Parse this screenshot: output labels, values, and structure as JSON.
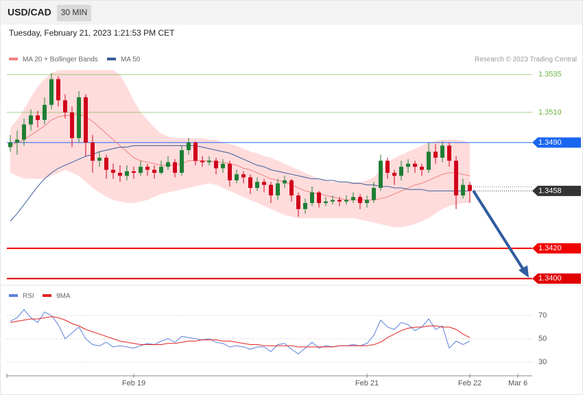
{
  "chart_data": [
    {
      "type": "candlestick",
      "symbol": "USD/CAD",
      "interval": "30 MIN",
      "timestamp": "Tuesday, February 21, 2023 1:21:53 PM CET",
      "credit": "Research © 2023 Trading Central",
      "up_color": "#1e7f34",
      "down_color": "#d0021b",
      "band_color": "#ffdcdc",
      "ylim": [
        1.3396,
        1.3539
      ],
      "ohlc": [
        [
          1.3487,
          1.3495,
          1.3484,
          1.349
        ],
        [
          1.349,
          1.3498,
          1.3482,
          1.3492
        ],
        [
          1.3492,
          1.3506,
          1.3488,
          1.3502
        ],
        [
          1.3502,
          1.3512,
          1.3498,
          1.3508
        ],
        [
          1.3508,
          1.3511,
          1.35,
          1.3505
        ],
        [
          1.3505,
          1.352,
          1.3502,
          1.3515
        ],
        [
          1.3515,
          1.3536,
          1.3512,
          1.3532
        ],
        [
          1.3532,
          1.3534,
          1.3514,
          1.3518
        ],
        [
          1.3518,
          1.3522,
          1.3506,
          1.351
        ],
        [
          1.351,
          1.3514,
          1.3487,
          1.3493
        ],
        [
          1.3493,
          1.3524,
          1.349,
          1.352
        ],
        [
          1.352,
          1.3522,
          1.3481,
          1.349
        ],
        [
          1.349,
          1.3495,
          1.347,
          1.3478
        ],
        [
          1.3478,
          1.3484,
          1.3474,
          1.348
        ],
        [
          1.348,
          1.3482,
          1.3466,
          1.3472
        ],
        [
          1.3472,
          1.3476,
          1.3466,
          1.347
        ],
        [
          1.347,
          1.3475,
          1.3464,
          1.3468
        ],
        [
          1.3468,
          1.3475,
          1.3465,
          1.3471
        ],
        [
          1.3471,
          1.3474,
          1.3466,
          1.347
        ],
        [
          1.347,
          1.3478,
          1.3468,
          1.3474
        ],
        [
          1.3474,
          1.3476,
          1.3468,
          1.3472
        ],
        [
          1.3472,
          1.3475,
          1.3466,
          1.347
        ],
        [
          1.347,
          1.3478,
          1.3469,
          1.3474
        ],
        [
          1.3474,
          1.3481,
          1.3472,
          1.3477
        ],
        [
          1.3477,
          1.3479,
          1.3467,
          1.347
        ],
        [
          1.347,
          1.3488,
          1.3468,
          1.3485
        ],
        [
          1.3485,
          1.3493,
          1.3482,
          1.349
        ],
        [
          1.349,
          1.3491,
          1.3475,
          1.3478
        ],
        [
          1.3478,
          1.3481,
          1.3474,
          1.3477
        ],
        [
          1.3477,
          1.3481,
          1.3475,
          1.3478
        ],
        [
          1.3478,
          1.348,
          1.3469,
          1.3473
        ],
        [
          1.3473,
          1.3479,
          1.347,
          1.3476
        ],
        [
          1.3476,
          1.3478,
          1.3461,
          1.3465
        ],
        [
          1.3465,
          1.3472,
          1.3463,
          1.3469
        ],
        [
          1.3469,
          1.3471,
          1.3463,
          1.3467
        ],
        [
          1.3467,
          1.3469,
          1.3456,
          1.346
        ],
        [
          1.346,
          1.3467,
          1.3458,
          1.3464
        ],
        [
          1.3464,
          1.3466,
          1.3457,
          1.3462
        ],
        [
          1.3462,
          1.3464,
          1.345,
          1.3455
        ],
        [
          1.3455,
          1.3466,
          1.3452,
          1.3463
        ],
        [
          1.3463,
          1.3468,
          1.346,
          1.3465
        ],
        [
          1.3465,
          1.3466,
          1.3451,
          1.3455
        ],
        [
          1.3455,
          1.3457,
          1.3441,
          1.3446
        ],
        [
          1.3446,
          1.3453,
          1.3443,
          1.345
        ],
        [
          1.345,
          1.3461,
          1.3448,
          1.3457
        ],
        [
          1.3457,
          1.3458,
          1.3447,
          1.345
        ],
        [
          1.345,
          1.3454,
          1.3448,
          1.3451
        ],
        [
          1.3451,
          1.3455,
          1.3449,
          1.3452
        ],
        [
          1.3452,
          1.3454,
          1.3448,
          1.3451
        ],
        [
          1.3451,
          1.3455,
          1.3449,
          1.3452
        ],
        [
          1.3452,
          1.3457,
          1.345,
          1.3454
        ],
        [
          1.3454,
          1.3456,
          1.3446,
          1.345
        ],
        [
          1.345,
          1.3455,
          1.3447,
          1.3452
        ],
        [
          1.3452,
          1.3464,
          1.345,
          1.346
        ],
        [
          1.346,
          1.3482,
          1.3458,
          1.3478
        ],
        [
          1.3478,
          1.348,
          1.3466,
          1.347
        ],
        [
          1.347,
          1.3472,
          1.3462,
          1.3468
        ],
        [
          1.3468,
          1.3478,
          1.3465,
          1.3474
        ],
        [
          1.3474,
          1.3479,
          1.347,
          1.3476
        ],
        [
          1.3476,
          1.3478,
          1.347,
          1.3474
        ],
        [
          1.3474,
          1.3476,
          1.3468,
          1.3472
        ],
        [
          1.3472,
          1.349,
          1.347,
          1.3484
        ],
        [
          1.3484,
          1.3489,
          1.3476,
          1.348
        ],
        [
          1.348,
          1.3491,
          1.3477,
          1.3488
        ],
        [
          1.3488,
          1.349,
          1.3474,
          1.3478
        ],
        [
          1.3478,
          1.3481,
          1.3446,
          1.3455
        ],
        [
          1.3455,
          1.3466,
          1.3453,
          1.3462
        ],
        [
          1.3462,
          1.3464,
          1.345,
          1.3458
        ],
        null,
        null,
        null,
        null,
        null,
        null,
        null
      ],
      "series": [
        {
          "name": "MA 20 + Bollinger Bands",
          "color": "#f08080",
          "values": [
            1.3488,
            1.349,
            1.3492,
            1.3495,
            1.3498,
            1.3501,
            1.3505,
            1.3507,
            1.3508,
            1.3508,
            1.3509,
            1.3507,
            1.3504,
            1.35,
            1.3496,
            1.3492,
            1.3488,
            1.3484,
            1.348,
            1.3478,
            1.3477,
            1.3476,
            1.3475,
            1.3475,
            1.3475,
            1.3476,
            1.3478,
            1.3478,
            1.3478,
            1.3478,
            1.3477,
            1.3477,
            1.3476,
            1.3475,
            1.3473,
            1.3472,
            1.347,
            1.3468,
            1.3466,
            1.3465,
            1.3464,
            1.3462,
            1.346,
            1.3458,
            1.3457,
            1.3456,
            1.3455,
            1.3454,
            1.3453,
            1.3452,
            1.3452,
            1.3452,
            1.3452,
            1.3452,
            1.3453,
            1.3454,
            1.3456,
            1.3458,
            1.346,
            1.3462,
            1.3463,
            1.3465,
            1.3467,
            1.3469,
            1.347,
            1.347,
            1.3469,
            1.3468,
            null,
            null,
            null,
            null,
            null,
            null,
            null
          ],
          "upper": [
            1.35,
            1.3505,
            1.3512,
            1.352,
            1.3527,
            1.3532,
            1.3536,
            1.3538,
            1.3538,
            1.3538,
            1.3538,
            1.3538,
            1.3538,
            1.3538,
            1.3538,
            1.3538,
            1.3535,
            1.3527,
            1.3518,
            1.351,
            1.3505,
            1.35,
            1.3496,
            1.3494,
            1.3493,
            1.3493,
            1.3493,
            1.3493,
            1.3493,
            1.3492,
            1.3492,
            1.349,
            1.3489,
            1.3488,
            1.3486,
            1.3484,
            1.3483,
            1.3481,
            1.348,
            1.3478,
            1.3476,
            1.3474,
            1.3472,
            1.347,
            1.3468,
            1.3466,
            1.3465,
            1.3464,
            1.3464,
            1.3464,
            1.3464,
            1.3464,
            1.3465,
            1.3467,
            1.3472,
            1.3476,
            1.348,
            1.3482,
            1.3484,
            1.3486,
            1.3488,
            1.349,
            1.3491,
            1.3492,
            1.3492,
            1.3492,
            1.3491,
            1.349,
            null,
            null,
            null,
            null,
            null,
            null,
            null
          ],
          "lower": [
            1.347,
            1.3468,
            1.3466,
            1.3466,
            1.3466,
            1.3466,
            1.3468,
            1.347,
            1.3472,
            1.347,
            1.3468,
            1.3464,
            1.346,
            1.3457,
            1.3454,
            1.3452,
            1.3451,
            1.345,
            1.345,
            1.3451,
            1.3452,
            1.3454,
            1.3456,
            1.3457,
            1.3458,
            1.3459,
            1.346,
            1.3461,
            1.3462,
            1.3463,
            1.3462,
            1.346,
            1.3458,
            1.3456,
            1.3454,
            1.3452,
            1.345,
            1.3448,
            1.3446,
            1.3444,
            1.3442,
            1.3441,
            1.344,
            1.344,
            1.344,
            1.344,
            1.344,
            1.344,
            1.344,
            1.344,
            1.344,
            1.3439,
            1.3438,
            1.3437,
            1.3436,
            1.3435,
            1.3434,
            1.3434,
            1.3435,
            1.3436,
            1.3438,
            1.344,
            1.3443,
            1.3446,
            1.3448,
            1.3449,
            1.345,
            1.345,
            null,
            null,
            null,
            null,
            null,
            null,
            null
          ]
        },
        {
          "name": "MA 50",
          "color": "#3b5b9a",
          "values": [
            1.3438,
            1.3443,
            1.3449,
            1.3455,
            1.3461,
            1.3466,
            1.347,
            1.3473,
            1.3475,
            1.3477,
            1.3479,
            1.3481,
            1.3482,
            1.3484,
            1.3485,
            1.3486,
            1.3487,
            1.3487,
            1.3488,
            1.3488,
            1.3488,
            1.3488,
            1.3488,
            1.3488,
            1.3488,
            1.3488,
            1.3488,
            1.3488,
            1.3487,
            1.3486,
            1.3485,
            1.3484,
            1.3483,
            1.3481,
            1.3479,
            1.3477,
            1.3475,
            1.3474,
            1.3472,
            1.3471,
            1.347,
            1.3469,
            1.3468,
            1.3467,
            1.3466,
            1.3466,
            1.3465,
            1.3465,
            1.3464,
            1.3464,
            1.3463,
            1.3463,
            1.3462,
            1.3462,
            1.3461,
            1.3461,
            1.346,
            1.346,
            1.3459,
            1.3459,
            1.3459,
            1.3458,
            1.3458,
            1.3458,
            1.3458,
            1.3458,
            1.3458,
            1.3458,
            null,
            null,
            null,
            null,
            null,
            null,
            null
          ]
        }
      ],
      "levels": [
        {
          "value": 1.3535,
          "color": "#6cb33f",
          "badge": false,
          "line": "solid"
        },
        {
          "value": 1.351,
          "label": "1.3510",
          "color": "#6cb33f",
          "badge": false,
          "line": "solid"
        },
        {
          "value": 1.349,
          "label": "1.3490",
          "color": "#1a66f0",
          "badge": true,
          "line": "solid"
        },
        {
          "value": 1.3458,
          "color": "#333333",
          "badge": true,
          "line": "dotted"
        },
        {
          "value": 1.342,
          "label": "1.3420",
          "color": "#f00000",
          "badge": true,
          "line": "solid"
        },
        {
          "value": 1.34,
          "label": "1.3400",
          "color": "#e00000",
          "badge": true,
          "line": "solid"
        }
      ]
    },
    {
      "type": "line",
      "ylim": [
        20,
        93.5
      ],
      "yticks": [
        30,
        50,
        70
      ],
      "categories": [
        null,
        null,
        null,
        null,
        null,
        null,
        null,
        null,
        null,
        null,
        null,
        null,
        null,
        null,
        null,
        null,
        null,
        null,
        "Feb 19",
        null,
        null,
        null,
        null,
        null,
        null,
        null,
        null,
        null,
        null,
        null,
        null,
        null,
        null,
        null,
        null,
        null,
        null,
        null,
        null,
        null,
        null,
        null,
        null,
        null,
        null,
        null,
        null,
        null,
        null,
        null,
        null,
        null,
        "Feb 21",
        null,
        null,
        null,
        null,
        null,
        null,
        null,
        null,
        null,
        null,
        null,
        null,
        null,
        null,
        "Feb 22",
        null,
        null,
        null,
        null,
        null,
        null,
        "Mar 6"
      ],
      "series": [
        {
          "name": "RSI",
          "color": "#5b7fdb",
          "values": [
            65,
            68,
            75,
            68,
            64,
            73,
            70,
            62,
            50,
            55,
            60,
            50,
            45,
            44,
            47,
            43,
            44,
            43,
            42,
            44,
            46,
            45,
            48,
            50,
            47,
            52,
            51,
            50,
            49,
            50,
            47,
            46,
            43,
            44,
            43,
            41,
            43,
            43,
            39,
            45,
            46,
            41,
            37,
            42,
            47,
            42,
            44,
            43,
            44,
            44,
            45,
            44,
            46,
            53,
            66,
            60,
            58,
            64,
            62,
            57,
            60,
            67,
            58,
            61,
            42,
            48,
            45,
            48,
            null,
            null,
            null,
            null,
            null,
            null,
            null
          ]
        },
        {
          "name": "9MA",
          "color": "#e02020",
          "values": [
            64,
            65,
            66,
            67,
            67,
            68,
            69,
            68,
            66,
            63,
            61,
            58,
            56,
            54,
            52,
            50,
            48,
            47,
            46,
            45,
            45,
            45,
            45,
            46,
            46,
            47,
            48,
            48,
            49,
            49,
            49,
            48,
            48,
            47,
            46,
            45,
            45,
            44,
            44,
            44,
            44,
            44,
            43,
            43,
            43,
            43,
            43,
            43,
            44,
            44,
            44,
            44,
            44,
            45,
            47,
            51,
            54,
            57,
            59,
            60,
            60,
            61,
            61,
            60,
            60,
            58,
            54,
            51,
            null,
            null,
            null,
            null,
            null,
            null,
            null
          ]
        }
      ]
    }
  ]
}
